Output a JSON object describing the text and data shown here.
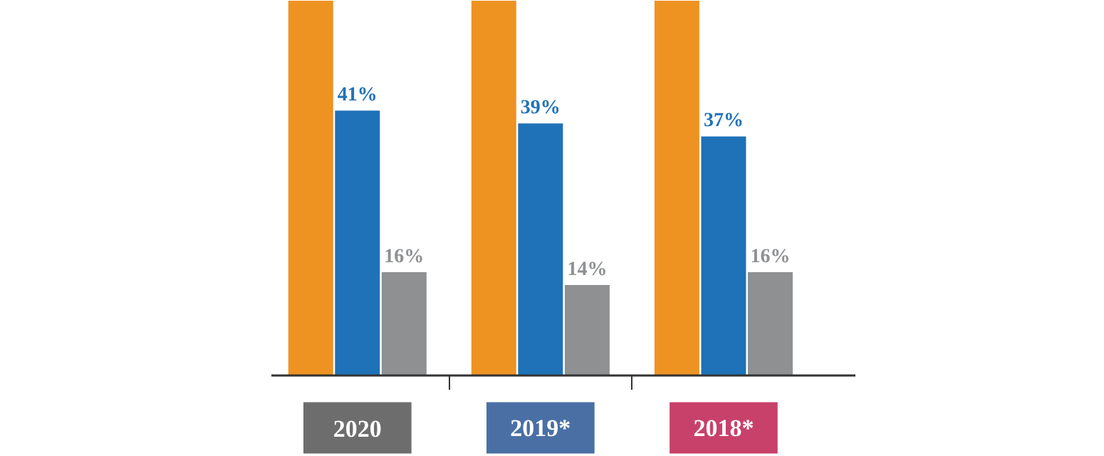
{
  "chart_data": {
    "type": "bar",
    "categories": [
      "2020",
      "2019*",
      "2018*"
    ],
    "ylim": [
      0,
      58
    ],
    "grid": false,
    "series": [
      {
        "color": "#ee9322",
        "values": [
          58,
          58,
          58
        ],
        "value_labels": [
          null,
          null,
          null
        ]
      },
      {
        "color": "#1f72b8",
        "values": [
          41,
          39,
          37
        ],
        "value_labels": [
          "41%",
          "39%",
          "37%"
        ]
      },
      {
        "color": "#8e9092",
        "values": [
          16,
          14,
          16
        ],
        "value_labels": [
          "16%",
          "14%",
          "16%"
        ]
      }
    ]
  }
}
